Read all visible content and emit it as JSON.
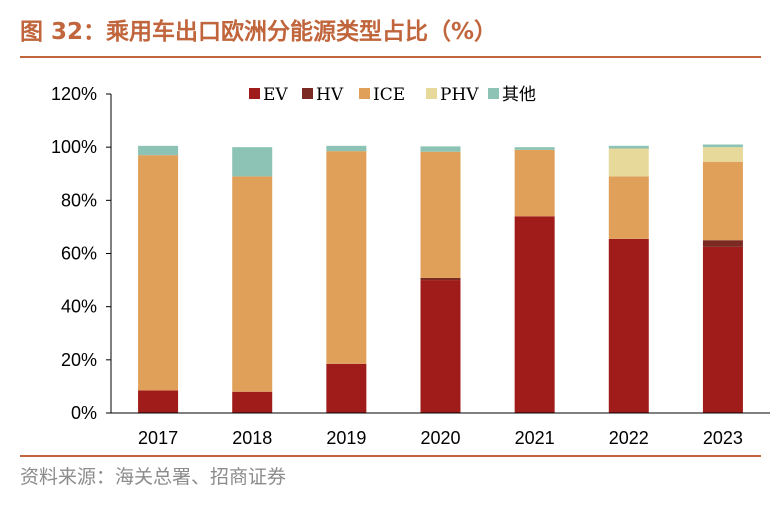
{
  "title": "图 32：乘用车出口欧洲分能源类型占比（%）",
  "source": "资料来源：海关总署、招商证券",
  "chart_data": {
    "type": "bar",
    "stacked": true,
    "categories": [
      "2017",
      "2018",
      "2019",
      "2020",
      "2021",
      "2022",
      "2023"
    ],
    "series": [
      {
        "name": "EV",
        "color": "#a01c1a",
        "values": [
          8.5,
          8,
          18.5,
          50,
          74,
          65.5,
          62.5
        ]
      },
      {
        "name": "HV",
        "color": "#7a2a22",
        "values": [
          0,
          0,
          0,
          0.8,
          0,
          0,
          2.5
        ]
      },
      {
        "name": "ICE",
        "color": "#e0a05a",
        "values": [
          88.5,
          81,
          80,
          47.5,
          25,
          23.5,
          29.5
        ]
      },
      {
        "name": "PHV",
        "color": "#e6d99a",
        "values": [
          0,
          0,
          0,
          0,
          0,
          10.5,
          5.5
        ]
      },
      {
        "name": "其他",
        "color": "#8cc3b5",
        "values": [
          3.5,
          11,
          2,
          2,
          1,
          1,
          1
        ]
      }
    ],
    "yticks": [
      "0%",
      "20%",
      "40%",
      "60%",
      "80%",
      "100%",
      "120%"
    ],
    "ylim": [
      0,
      120
    ],
    "legend_position": "top-right",
    "grid": false
  }
}
